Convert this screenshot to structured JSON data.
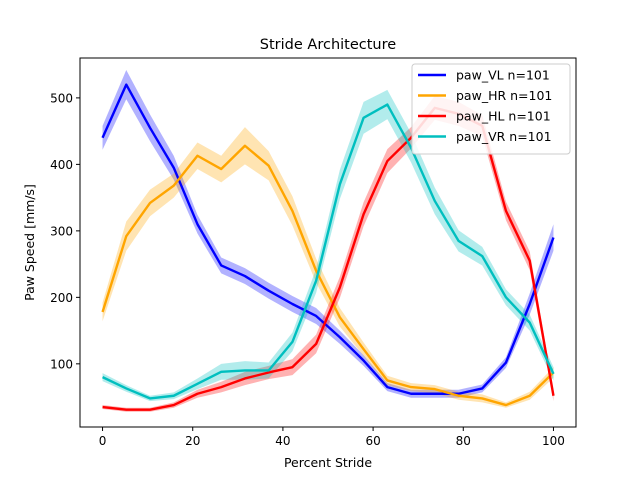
{
  "chart_data": {
    "type": "line",
    "title": "Stride Architecture",
    "xlabel": "Percent Stride",
    "ylabel": "Paw Speed [mm/s]",
    "xlim": [
      -5,
      105
    ],
    "ylim": [
      5,
      560
    ],
    "x_ticks": [
      0,
      20,
      40,
      60,
      80,
      100
    ],
    "y_ticks": [
      100,
      200,
      300,
      400,
      500
    ],
    "grid": false,
    "legend_position": "top-right",
    "x": [
      0,
      5.26,
      10.53,
      15.79,
      21.05,
      26.32,
      31.58,
      36.84,
      42.11,
      47.37,
      52.63,
      57.89,
      63.16,
      68.42,
      73.68,
      78.95,
      84.21,
      89.47,
      94.74,
      100
    ],
    "series": [
      {
        "name": "paw_VL n=101",
        "color": "#0000ff",
        "values": [
          440,
          520,
          455,
          395,
          310,
          248,
          232,
          210,
          190,
          172,
          140,
          105,
          65,
          55,
          55,
          55,
          63,
          102,
          190,
          290
        ],
        "band": [
          18,
          22,
          20,
          18,
          14,
          12,
          12,
          12,
          12,
          12,
          10,
          8,
          6,
          6,
          6,
          6,
          6,
          8,
          16,
          20
        ]
      },
      {
        "name": "paw_HR n=101",
        "color": "#ffa500",
        "values": [
          178,
          292,
          342,
          368,
          413,
          393,
          428,
          398,
          330,
          240,
          170,
          122,
          75,
          65,
          62,
          52,
          48,
          38,
          52,
          87
        ],
        "band": [
          14,
          22,
          20,
          18,
          20,
          20,
          28,
          22,
          22,
          18,
          14,
          10,
          7,
          6,
          6,
          6,
          6,
          4,
          6,
          8
        ]
      },
      {
        "name": "paw_HL n=101",
        "color": "#ff0000",
        "values": [
          35,
          31,
          31,
          38,
          55,
          65,
          78,
          87,
          95,
          130,
          215,
          325,
          405,
          440,
          485,
          476,
          458,
          330,
          255,
          52
        ],
        "band": [
          3,
          3,
          3,
          4,
          6,
          8,
          10,
          10,
          12,
          14,
          16,
          18,
          18,
          16,
          18,
          18,
          16,
          14,
          14,
          8
        ]
      },
      {
        "name": "paw_VR n=101",
        "color": "#00bfbf",
        "values": [
          80,
          63,
          48,
          52,
          70,
          88,
          90,
          90,
          133,
          225,
          370,
          470,
          490,
          425,
          345,
          285,
          262,
          200,
          162,
          85
        ],
        "band": [
          6,
          5,
          4,
          5,
          8,
          12,
          14,
          12,
          14,
          18,
          22,
          24,
          22,
          22,
          20,
          16,
          14,
          12,
          12,
          10
        ]
      }
    ]
  }
}
